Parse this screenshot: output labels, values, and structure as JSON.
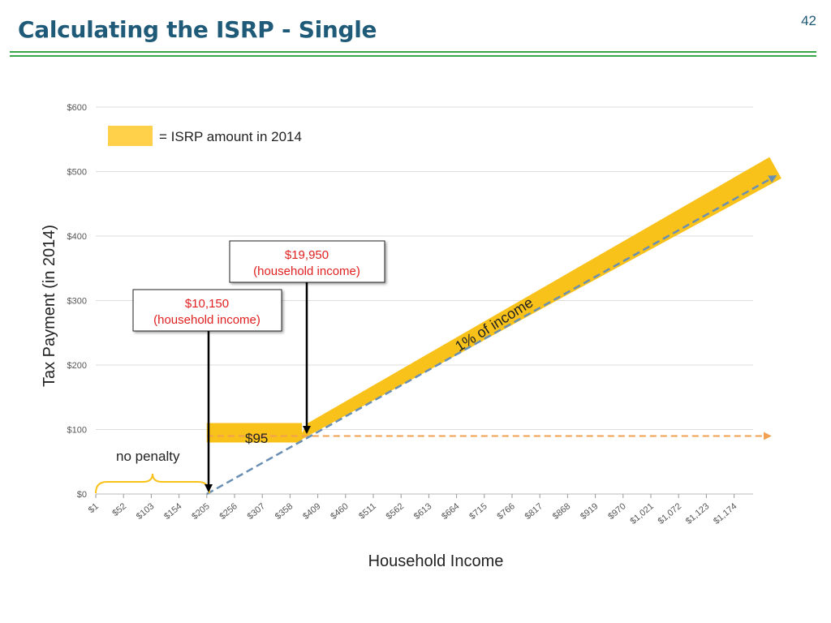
{
  "page": {
    "title": "Calculating the ISRP - Single",
    "page_number": "42"
  },
  "colors": {
    "title": "#1f5a78",
    "rule": "#3aa64a",
    "isrp_band": "#f9c21a",
    "legend_swatch": "#ffd04a",
    "flat_line": "#f0a050",
    "percent_line": "#6a8fb5",
    "callout_text": "#e02020"
  },
  "chart_data": {
    "type": "line",
    "xlabel": "Household Income",
    "ylabel": "Tax Payment  (in 2014)",
    "x_ticks": [
      "$1",
      "$52",
      "$103",
      "$154",
      "$205",
      "$256",
      "$307",
      "$358",
      "$409",
      "$460",
      "$511",
      "$562",
      "$613",
      "$664",
      "$715",
      "$766",
      "$817",
      "$868",
      "$919",
      "$970",
      "$1,021",
      "$1,072",
      "$1,123",
      "$1,174"
    ],
    "y_ticks": [
      "$0",
      "$100",
      "$200",
      "$300",
      "$400",
      "$500",
      "$600"
    ],
    "ylim": [
      0,
      600
    ],
    "grid": true,
    "legend": {
      "label": "= ISRP amount in 2014",
      "placement": "top-left"
    },
    "series": [
      {
        "name": "1% of income",
        "points": [
          [
            205,
            0
          ],
          [
            1250,
            493
          ]
        ]
      },
      {
        "points": [
          [
            205,
            90
          ],
          [
            1240,
            90
          ]
        ]
      }
    ],
    "isrp_band": [
      [
        205,
        95
      ],
      [
        380,
        95
      ],
      [
        1250,
        506
      ]
    ],
    "annotations": {
      "flat_amount": "$95",
      "no_penalty": "no penalty",
      "callout_1": {
        "amount": "$10,150",
        "label": "(household income)",
        "x": 205
      },
      "callout_2": {
        "amount": "$19,950",
        "label": "(household income)",
        "x": 380
      }
    }
  }
}
